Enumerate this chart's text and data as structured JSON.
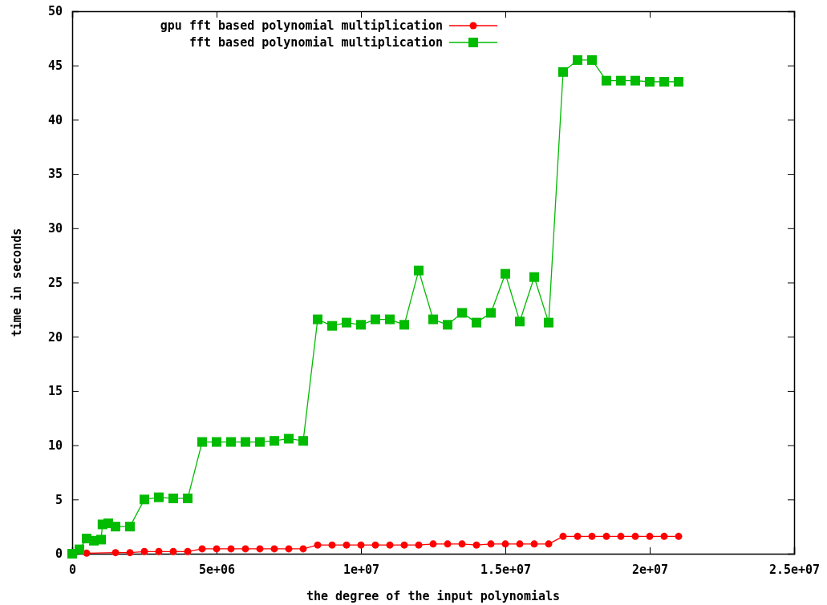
{
  "chart_data": {
    "type": "line",
    "xlabel": "the degree of the input polynomials",
    "ylabel": "time in seconds",
    "xlim": [
      0,
      25000000
    ],
    "xticks": [
      0,
      {
        "value": 5000000,
        "label": "5e+06"
      },
      {
        "value": 10000000,
        "label": "1e+07"
      },
      {
        "value": 15000000,
        "label": "1.5e+07"
      },
      {
        "value": 20000000,
        "label": "2e+07"
      },
      {
        "value": 25000000,
        "label": "2.5e+07"
      }
    ],
    "ylim": [
      0,
      50
    ],
    "yticks": [
      0,
      5,
      10,
      15,
      20,
      25,
      30,
      35,
      40,
      45,
      50
    ],
    "grid": false,
    "legend": "top left",
    "line_style": "solid",
    "series": [
      {
        "name": "gpu fft based polynomial multiplication",
        "color": "#ff0000",
        "marker": "circle",
        "x": [
          0,
          250000,
          500000,
          1500000,
          2000000,
          2500000,
          3000000,
          3500000,
          4000000,
          4500000,
          5000000,
          5500000,
          6000000,
          6500000,
          7000000,
          7500000,
          8000000,
          8500000,
          9000000,
          9500000,
          10000000,
          10500000,
          11000000,
          11500000,
          12000000,
          12500000,
          13000000,
          13500000,
          14000000,
          14500000,
          15000000,
          15500000,
          16000000,
          16500000,
          17000000,
          17500000,
          18000000,
          18500000,
          19000000,
          19500000,
          20000000,
          20500000,
          21000000
        ],
        "values": [
          0,
          null,
          0.05,
          0.1,
          0.1,
          0.2,
          0.2,
          0.2,
          0.2,
          0.45,
          0.45,
          0.45,
          0.45,
          0.45,
          0.45,
          0.45,
          0.45,
          0.8,
          0.8,
          0.8,
          0.8,
          0.8,
          0.8,
          0.8,
          0.8,
          0.9,
          0.9,
          0.9,
          0.8,
          0.9,
          0.9,
          0.9,
          0.9,
          0.9,
          1.6,
          1.6,
          1.6,
          1.6,
          1.6,
          1.6,
          1.6,
          1.6,
          1.6
        ]
      },
      {
        "name": "fft based polynomial multiplication",
        "color": "#00bb00",
        "marker": "square",
        "x": [
          0,
          250000,
          500000,
          750000,
          1000000,
          1050000,
          1250000,
          1500000,
          2000000,
          2500000,
          3000000,
          3500000,
          4000000,
          4500000,
          5000000,
          5500000,
          6000000,
          6500000,
          7000000,
          7500000,
          8000000,
          8500000,
          9000000,
          9500000,
          10000000,
          10500000,
          11000000,
          11500000,
          12000000,
          12500000,
          13000000,
          13500000,
          14000000,
          14500000,
          15000000,
          15500000,
          16000000,
          16500000,
          17000000,
          17500000,
          18000000,
          18500000,
          19000000,
          19500000,
          20000000,
          20500000,
          21000000
        ],
        "values": [
          0,
          0.4,
          1.4,
          1.2,
          1.3,
          2.7,
          2.8,
          2.5,
          2.5,
          5.0,
          5.2,
          5.1,
          5.1,
          10.3,
          10.3,
          10.3,
          10.3,
          10.3,
          10.4,
          10.6,
          10.4,
          21.6,
          21.0,
          21.3,
          21.1,
          21.6,
          21.6,
          21.1,
          26.1,
          21.6,
          21.1,
          22.2,
          21.3,
          22.2,
          25.8,
          21.4,
          25.5,
          21.3,
          44.4,
          45.5,
          45.5,
          43.6,
          43.6,
          43.6,
          43.5,
          43.5,
          43.5
        ]
      }
    ]
  }
}
